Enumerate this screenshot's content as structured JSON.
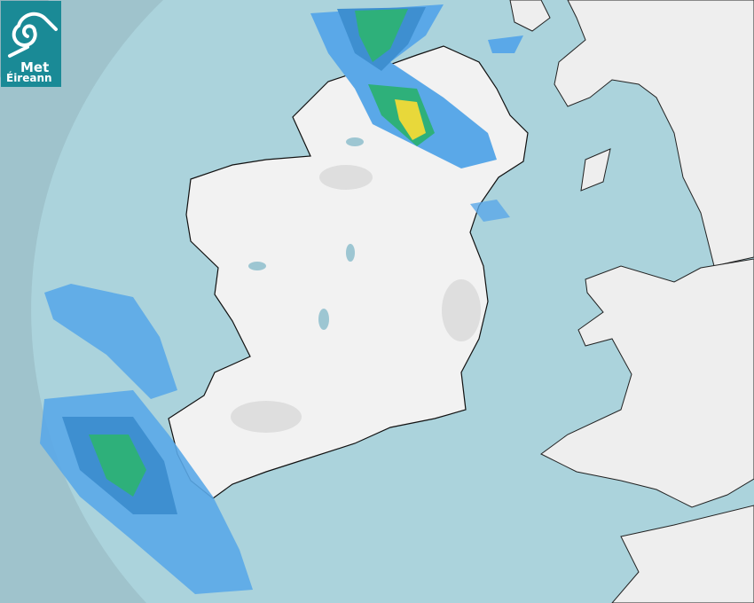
{
  "logo": {
    "line1": "Met",
    "line2": "Éireann",
    "background": "#1a8a96"
  },
  "colors": {
    "outside_range": "#8fb3bd",
    "outer_ring": "#9fc3cc",
    "sea": "#abd3dc",
    "land": "#f0f0f0",
    "rain_light": "#5aa8e8",
    "rain_moderate": "#3e8fd0",
    "rain_heavy": "#2eb07a",
    "rain_very_heavy": "#e8d83a"
  }
}
